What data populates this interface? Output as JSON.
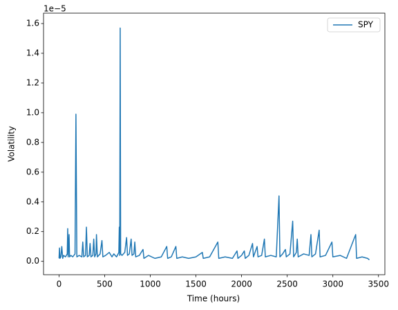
{
  "chart_data": {
    "type": "line",
    "xlabel": "Time (hours)",
    "ylabel": "Volatility",
    "y_offset_label": "1e−5",
    "x": [
      0,
      5,
      10,
      20,
      30,
      40,
      50,
      70,
      90,
      95,
      100,
      110,
      115,
      130,
      150,
      175,
      185,
      195,
      220,
      250,
      260,
      270,
      290,
      300,
      310,
      330,
      340,
      350,
      370,
      380,
      390,
      405,
      410,
      420,
      450,
      470,
      480,
      510,
      550,
      580,
      600,
      630,
      655,
      660,
      665,
      670,
      675,
      690,
      720,
      740,
      750,
      770,
      790,
      800,
      820,
      830,
      840,
      880,
      920,
      930,
      980,
      1050,
      1120,
      1180,
      1190,
      1230,
      1280,
      1290,
      1350,
      1420,
      1500,
      1570,
      1580,
      1650,
      1740,
      1750,
      1820,
      1900,
      1950,
      1960,
      2000,
      2030,
      2040,
      2080,
      2120,
      2130,
      2170,
      2180,
      2220,
      2250,
      2260,
      2320,
      2380,
      2410,
      2420,
      2450,
      2480,
      2490,
      2530,
      2560,
      2570,
      2600,
      2610,
      2620,
      2680,
      2740,
      2760,
      2770,
      2810,
      2850,
      2860,
      2920,
      2990,
      3000,
      3080,
      3150,
      3250,
      3260,
      3320,
      3380,
      3400
    ],
    "series": [
      {
        "name": "SPY",
        "color": "#1f77b4",
        "values": [
          0.02,
          0.09,
          0.02,
          0.03,
          0.1,
          0.02,
          0.04,
          0.03,
          0.05,
          0.22,
          0.03,
          0.18,
          0.03,
          0.04,
          0.03,
          0.05,
          0.99,
          0.03,
          0.04,
          0.03,
          0.13,
          0.03,
          0.04,
          0.23,
          0.03,
          0.04,
          0.12,
          0.03,
          0.04,
          0.15,
          0.03,
          0.05,
          0.18,
          0.03,
          0.05,
          0.14,
          0.03,
          0.04,
          0.06,
          0.03,
          0.05,
          0.03,
          0.06,
          0.23,
          0.04,
          1.57,
          0.05,
          0.04,
          0.06,
          0.16,
          0.04,
          0.05,
          0.15,
          0.04,
          0.05,
          0.13,
          0.03,
          0.04,
          0.08,
          0.02,
          0.04,
          0.02,
          0.03,
          0.1,
          0.02,
          0.03,
          0.1,
          0.02,
          0.03,
          0.02,
          0.03,
          0.06,
          0.02,
          0.03,
          0.13,
          0.02,
          0.03,
          0.02,
          0.07,
          0.02,
          0.04,
          0.07,
          0.02,
          0.04,
          0.12,
          0.03,
          0.1,
          0.03,
          0.04,
          0.15,
          0.03,
          0.04,
          0.03,
          0.44,
          0.03,
          0.05,
          0.08,
          0.03,
          0.05,
          0.27,
          0.03,
          0.06,
          0.15,
          0.03,
          0.05,
          0.04,
          0.18,
          0.03,
          0.05,
          0.21,
          0.03,
          0.04,
          0.13,
          0.03,
          0.04,
          0.02,
          0.18,
          0.02,
          0.03,
          0.02,
          0.01
        ]
      }
    ],
    "xlim": [
      -170,
      3570
    ],
    "ylim": [
      -0.09,
      1.67
    ],
    "xticks": [
      0,
      500,
      1000,
      1500,
      2000,
      2500,
      3000,
      3500
    ],
    "yticks": [
      {
        "value": 0,
        "label": "0.0"
      },
      0.2,
      0.4,
      0.6,
      0.8,
      {
        "value": 1,
        "label": "1.0"
      },
      1.2,
      1.4,
      1.6
    ],
    "legend": "upper right",
    "grid": false
  }
}
